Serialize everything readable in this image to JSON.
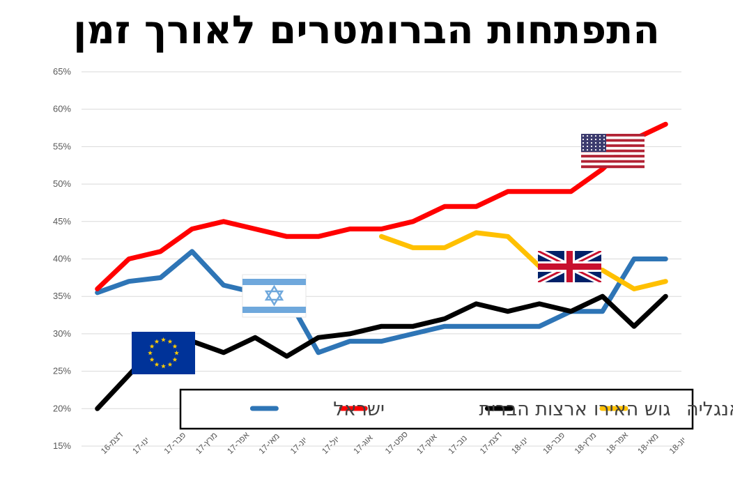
{
  "chart_data": {
    "type": "line",
    "title": "התפתחות הברומטרים לאורך זמן",
    "xlabel": "",
    "ylabel": "",
    "categories": [
      "דצמ-16",
      "ינו-17",
      "פבר-17",
      "מרץ-17",
      "אפר-17",
      "מאי-17",
      "יונ-17",
      "יול-17",
      "אוג-17",
      "ספט-17",
      "אוק-17",
      "נוב-17",
      "דצמ-17",
      "ינו-18",
      "פבר-18",
      "מרץ-18",
      "אפר-18",
      "מאי-18",
      "יונ-18"
    ],
    "ylim": [
      0.15,
      0.65
    ],
    "yticks": [
      "15%",
      "20%",
      "25%",
      "30%",
      "35%",
      "40%",
      "45%",
      "50%",
      "55%",
      "60%",
      "65%"
    ],
    "grid": true,
    "legend_position": "bottom-right",
    "series": [
      {
        "name": "ישראל",
        "color": "#2E75B6",
        "values": [
          0.355,
          0.37,
          0.375,
          0.41,
          0.365,
          0.355,
          0.35,
          0.275,
          0.29,
          0.29,
          0.3,
          0.31,
          0.31,
          0.31,
          0.31,
          0.33,
          0.33,
          0.4,
          0.4
        ]
      },
      {
        "name": "ארצות הברית",
        "color": "#FF0000",
        "values": [
          0.36,
          0.4,
          0.41,
          0.44,
          0.45,
          0.44,
          0.43,
          0.43,
          0.44,
          0.44,
          0.45,
          0.47,
          0.47,
          0.49,
          0.49,
          0.49,
          0.52,
          0.56,
          0.58
        ]
      },
      {
        "name": "גוש האירו",
        "color": "#000000",
        "values": [
          0.2,
          0.245,
          0.29,
          0.29,
          0.275,
          0.295,
          0.27,
          0.295,
          0.3,
          0.31,
          0.31,
          0.32,
          0.34,
          0.33,
          0.34,
          0.33,
          0.35,
          0.31,
          0.35
        ]
      },
      {
        "name": "אנגליה",
        "color": "#FFC000",
        "values": [
          null,
          null,
          null,
          null,
          null,
          null,
          null,
          null,
          null,
          0.43,
          0.415,
          0.415,
          0.435,
          0.43,
          0.39,
          0.39,
          0.385,
          0.36,
          0.37
        ]
      }
    ],
    "flags": [
      {
        "icon": "eu-flag-icon",
        "series": "גוש האירו"
      },
      {
        "icon": "israel-flag-icon",
        "series": "ישראל"
      },
      {
        "icon": "uk-flag-icon",
        "series": "אנגליה"
      },
      {
        "icon": "us-flag-icon",
        "series": "ארצות הברית"
      }
    ]
  }
}
